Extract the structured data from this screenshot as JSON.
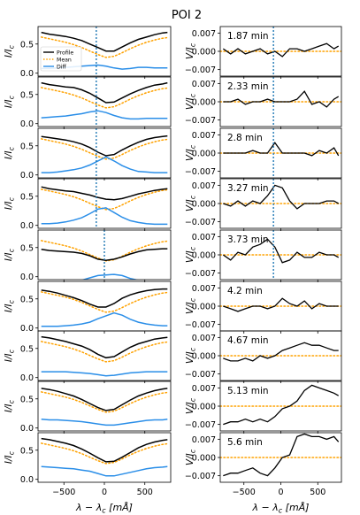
{
  "figure": {
    "title": "POI 2"
  },
  "colors": {
    "profile": "#000000",
    "mean": "#ffa200",
    "diff": "#2a8ee8",
    "marker": "#1f77b4",
    "zero": "#ffa200"
  },
  "chart_data": [
    {
      "type": "line",
      "panel_group": "left",
      "xlabel": "λ − λ_c [mÅ]",
      "ylabel": "I/I_c",
      "xlim": [
        -820,
        820
      ],
      "ylim": [
        -0.05,
        0.8
      ],
      "y_ticks": [
        0.0,
        0.5
      ],
      "x_ticks": [
        -500,
        0,
        500
      ],
      "x_tick_labels": [
        "−500",
        "0",
        "500"
      ],
      "legend": {
        "placement": "lower-left of first panel",
        "entries": [
          "Profile",
          "Mean",
          "Diff"
        ]
      },
      "x": [
        -780,
        -680,
        -580,
        -480,
        -380,
        -280,
        -180,
        -80,
        20,
        120,
        220,
        320,
        420,
        520,
        620,
        720,
        780
      ],
      "panels": [
        {
          "time": "1.87 min",
          "marker_x": -100,
          "profile": [
            0.7,
            0.67,
            0.65,
            0.63,
            0.6,
            0.56,
            0.5,
            0.44,
            0.38,
            0.38,
            0.45,
            0.52,
            0.58,
            0.62,
            0.66,
            0.69,
            0.7
          ],
          "mean": [
            0.62,
            0.59,
            0.56,
            0.53,
            0.49,
            0.44,
            0.38,
            0.32,
            0.27,
            0.29,
            0.35,
            0.42,
            0.48,
            0.53,
            0.57,
            0.6,
            0.61
          ],
          "diff": [
            0.08,
            0.08,
            0.09,
            0.1,
            0.11,
            0.12,
            0.13,
            0.14,
            0.12,
            0.09,
            0.07,
            0.08,
            0.1,
            0.1,
            0.09,
            0.09,
            0.09
          ]
        },
        {
          "time": "2.33 min",
          "marker_x": -100,
          "profile": [
            0.7,
            0.67,
            0.65,
            0.63,
            0.62,
            0.58,
            0.52,
            0.44,
            0.36,
            0.37,
            0.44,
            0.51,
            0.57,
            0.62,
            0.66,
            0.68,
            0.7
          ],
          "mean": [
            0.62,
            0.59,
            0.56,
            0.53,
            0.49,
            0.44,
            0.38,
            0.32,
            0.27,
            0.29,
            0.35,
            0.42,
            0.48,
            0.53,
            0.57,
            0.6,
            0.61
          ],
          "diff": [
            0.1,
            0.11,
            0.12,
            0.13,
            0.15,
            0.17,
            0.2,
            0.22,
            0.19,
            0.14,
            0.1,
            0.08,
            0.08,
            0.09,
            0.09,
            0.09,
            0.09
          ]
        },
        {
          "time": "2.8 min",
          "marker_x": -100,
          "profile": [
            0.66,
            0.64,
            0.62,
            0.6,
            0.57,
            0.53,
            0.47,
            0.39,
            0.33,
            0.35,
            0.43,
            0.5,
            0.56,
            0.61,
            0.64,
            0.66,
            0.67
          ],
          "mean": [
            0.62,
            0.59,
            0.56,
            0.53,
            0.49,
            0.44,
            0.38,
            0.32,
            0.27,
            0.29,
            0.35,
            0.42,
            0.48,
            0.53,
            0.57,
            0.6,
            0.61
          ],
          "diff": [
            0.04,
            0.04,
            0.05,
            0.07,
            0.09,
            0.12,
            0.17,
            0.24,
            0.31,
            0.24,
            0.16,
            0.1,
            0.06,
            0.05,
            0.04,
            0.04,
            0.04
          ]
        },
        {
          "time": "3.27 min",
          "marker_x": -100,
          "profile": [
            0.66,
            0.63,
            0.61,
            0.59,
            0.58,
            0.55,
            0.52,
            0.48,
            0.45,
            0.44,
            0.46,
            0.5,
            0.54,
            0.57,
            0.6,
            0.62,
            0.63
          ],
          "mean": [
            0.62,
            0.59,
            0.56,
            0.53,
            0.49,
            0.44,
            0.38,
            0.32,
            0.27,
            0.29,
            0.35,
            0.42,
            0.48,
            0.53,
            0.57,
            0.6,
            0.61
          ],
          "diff": [
            0.03,
            0.03,
            0.04,
            0.06,
            0.09,
            0.13,
            0.2,
            0.28,
            0.3,
            0.22,
            0.14,
            0.08,
            0.05,
            0.03,
            0.02,
            0.02,
            0.02
          ]
        },
        {
          "time": "3.73 min",
          "marker_x": 0,
          "profile": [
            0.47,
            0.45,
            0.44,
            0.43,
            0.42,
            0.4,
            0.36,
            0.3,
            0.28,
            0.3,
            0.34,
            0.39,
            0.43,
            0.46,
            0.47,
            0.48,
            0.48
          ],
          "mean": [
            0.62,
            0.59,
            0.56,
            0.53,
            0.49,
            0.44,
            0.38,
            0.32,
            0.27,
            0.29,
            0.35,
            0.42,
            0.48,
            0.53,
            0.57,
            0.6,
            0.61
          ],
          "diff": [
            -0.12,
            -0.12,
            -0.12,
            -0.11,
            -0.09,
            -0.06,
            -0.02,
            0.02,
            0.03,
            0.04,
            0.02,
            -0.03,
            -0.06,
            -0.08,
            -0.1,
            -0.12,
            -0.12
          ]
        },
        {
          "time": "4.2 min",
          "profile": [
            0.65,
            0.63,
            0.6,
            0.56,
            0.52,
            0.47,
            0.41,
            0.36,
            0.36,
            0.42,
            0.51,
            0.57,
            0.61,
            0.64,
            0.66,
            0.67,
            0.67
          ],
          "mean": [
            0.62,
            0.59,
            0.56,
            0.53,
            0.49,
            0.44,
            0.38,
            0.32,
            0.27,
            0.29,
            0.35,
            0.42,
            0.48,
            0.53,
            0.57,
            0.6,
            0.61
          ],
          "diff": [
            0.03,
            0.03,
            0.03,
            0.04,
            0.05,
            0.07,
            0.1,
            0.16,
            0.21,
            0.26,
            0.22,
            0.15,
            0.1,
            0.07,
            0.05,
            0.04,
            0.04
          ]
        },
        {
          "time": "4.67 min",
          "profile": [
            0.7,
            0.68,
            0.65,
            0.62,
            0.58,
            0.54,
            0.48,
            0.4,
            0.34,
            0.36,
            0.44,
            0.52,
            0.58,
            0.62,
            0.66,
            0.68,
            0.69
          ],
          "mean": [
            0.62,
            0.59,
            0.56,
            0.53,
            0.49,
            0.44,
            0.38,
            0.32,
            0.27,
            0.29,
            0.35,
            0.42,
            0.48,
            0.53,
            0.57,
            0.6,
            0.61
          ],
          "diff": [
            0.1,
            0.1,
            0.1,
            0.1,
            0.09,
            0.08,
            0.07,
            0.05,
            0.03,
            0.04,
            0.06,
            0.08,
            0.09,
            0.1,
            0.1,
            0.1,
            0.1
          ]
        },
        {
          "time": "5.13 min",
          "profile": [
            0.68,
            0.66,
            0.63,
            0.59,
            0.55,
            0.49,
            0.42,
            0.35,
            0.3,
            0.32,
            0.4,
            0.48,
            0.55,
            0.6,
            0.64,
            0.67,
            0.68
          ],
          "mean": [
            0.62,
            0.59,
            0.56,
            0.53,
            0.49,
            0.44,
            0.38,
            0.32,
            0.27,
            0.29,
            0.35,
            0.42,
            0.48,
            0.53,
            0.57,
            0.6,
            0.61
          ],
          "diff": [
            0.15,
            0.14,
            0.14,
            0.13,
            0.12,
            0.11,
            0.09,
            0.07,
            0.05,
            0.05,
            0.07,
            0.09,
            0.11,
            0.13,
            0.14,
            0.14,
            0.15
          ]
        },
        {
          "time": "5.6 min",
          "profile": [
            0.7,
            0.68,
            0.65,
            0.62,
            0.58,
            0.52,
            0.45,
            0.37,
            0.3,
            0.31,
            0.38,
            0.46,
            0.54,
            0.6,
            0.64,
            0.67,
            0.68
          ],
          "mean": [
            0.62,
            0.59,
            0.56,
            0.53,
            0.49,
            0.44,
            0.38,
            0.32,
            0.27,
            0.29,
            0.35,
            0.42,
            0.48,
            0.53,
            0.57,
            0.6,
            0.61
          ],
          "diff": [
            0.22,
            0.21,
            0.2,
            0.19,
            0.18,
            0.16,
            0.14,
            0.1,
            0.06,
            0.06,
            0.09,
            0.12,
            0.15,
            0.18,
            0.2,
            0.21,
            0.22
          ]
        }
      ]
    },
    {
      "type": "line",
      "panel_group": "right",
      "xlabel": "λ − λ_c [mÅ]",
      "ylabel": "V/I_c",
      "xlim": [
        -820,
        820
      ],
      "ylim": [
        -0.0095,
        0.0095
      ],
      "y_ticks": [
        0.007,
        0.0,
        -0.007
      ],
      "y_tick_labels": [
        "0.007",
        "0.000",
        "−0.007"
      ],
      "x_ticks": [
        -500,
        0,
        500
      ],
      "x_tick_labels": [
        "−500",
        "0",
        "500"
      ],
      "x": [
        -780,
        -680,
        -580,
        -480,
        -380,
        -280,
        -180,
        -80,
        20,
        120,
        220,
        320,
        420,
        520,
        620,
        720,
        780
      ],
      "panels": [
        {
          "time": "1.87 min",
          "marker_x": -100,
          "v": [
            0.001,
            -0.001,
            0.001,
            -0.001,
            0.0,
            0.001,
            -0.001,
            0.0,
            -0.002,
            0.001,
            0.001,
            0.0,
            0.001,
            0.002,
            0.003,
            0.001,
            0.002
          ]
        },
        {
          "time": "2.33 min",
          "marker_x": -100,
          "v": [
            0.0,
            0.0,
            0.001,
            -0.001,
            0.0,
            0.0,
            0.001,
            0.0,
            0.0,
            0.0,
            0.001,
            0.004,
            -0.001,
            0.0,
            -0.002,
            0.001,
            0.002
          ]
        },
        {
          "time": "2.8 min",
          "marker_x": -100,
          "v": [
            0.0,
            0.0,
            0.0,
            0.0,
            0.001,
            0.0,
            0.0,
            0.004,
            0.0,
            0.0,
            0.0,
            0.0,
            -0.001,
            0.001,
            0.0,
            0.002,
            -0.001
          ]
        },
        {
          "time": "3.27 min",
          "marker_x": -100,
          "v": [
            0.0,
            -0.001,
            0.001,
            -0.001,
            0.001,
            0.0,
            0.003,
            0.007,
            0.006,
            0.001,
            -0.002,
            0.0,
            0.0,
            0.0,
            0.001,
            0.001,
            0.0
          ]
        },
        {
          "time": "3.73 min",
          "marker_x": -100,
          "v": [
            0.0,
            -0.002,
            0.001,
            0.0,
            0.003,
            0.004,
            0.006,
            0.003,
            -0.003,
            -0.002,
            0.001,
            -0.001,
            -0.001,
            0.001,
            0.0,
            0.0,
            -0.001
          ]
        },
        {
          "time": "4.2 min",
          "v": [
            0.0,
            -0.001,
            -0.002,
            -0.001,
            0.0,
            0.0,
            -0.001,
            0.0,
            0.003,
            0.001,
            0.0,
            0.002,
            -0.001,
            0.001,
            0.0,
            0.0,
            0.0
          ]
        },
        {
          "time": "4.67 min",
          "v": [
            -0.001,
            -0.002,
            -0.002,
            -0.001,
            -0.002,
            0.0,
            -0.001,
            0.0,
            0.002,
            0.003,
            0.004,
            0.005,
            0.004,
            0.004,
            0.003,
            0.002,
            0.002
          ]
        },
        {
          "time": "5.13 min",
          "v": [
            -0.007,
            -0.006,
            -0.006,
            -0.005,
            -0.006,
            -0.005,
            -0.006,
            -0.004,
            -0.001,
            0.0,
            0.002,
            0.006,
            0.008,
            0.007,
            0.006,
            0.005,
            0.004
          ]
        },
        {
          "time": "5.6 min",
          "v": [
            -0.007,
            -0.006,
            -0.006,
            -0.005,
            -0.004,
            -0.006,
            -0.007,
            -0.004,
            0.0,
            0.001,
            0.008,
            0.009,
            0.008,
            0.008,
            0.007,
            0.008,
            0.006
          ]
        }
      ]
    }
  ]
}
